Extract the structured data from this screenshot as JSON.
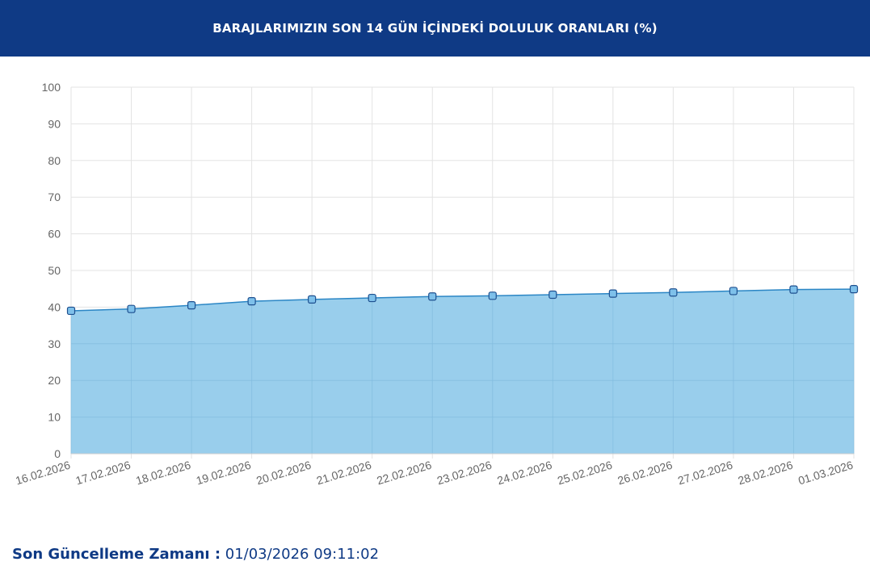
{
  "header": {
    "title": "BARAJLARIMIZIN SON 14 GÜN İÇİNDEKİ DOLULUK ORANLARI (%)"
  },
  "colors": {
    "header_bg": "#0f3a85",
    "area_fill": "#99ceec",
    "line": "#2b86c5",
    "marker_fill": "#7ec0ea",
    "marker_stroke": "#1d4f8f",
    "grid": "#e3e3e3",
    "footer_text": "#0f3a85"
  },
  "chart_data": {
    "type": "area",
    "categories": [
      "16.02.2026",
      "17.02.2026",
      "18.02.2026",
      "19.02.2026",
      "20.02.2026",
      "21.02.2026",
      "22.02.2026",
      "23.02.2026",
      "24.02.2026",
      "25.02.2026",
      "26.02.2026",
      "27.02.2026",
      "28.02.2026",
      "01.03.2026"
    ],
    "series": [
      {
        "values": [
          39.0,
          39.5,
          40.5,
          41.6,
          42.1,
          42.5,
          42.9,
          43.1,
          43.4,
          43.7,
          44.0,
          44.4,
          44.8,
          44.9
        ]
      }
    ],
    "ylim": [
      0,
      100
    ],
    "yticks": [
      0,
      10,
      20,
      30,
      40,
      50,
      60,
      70,
      80,
      90,
      100
    ],
    "grid": true,
    "legend": "none"
  },
  "footer": {
    "label": "Son Güncelleme Zamanı :",
    "value": "01/03/2026 09:11:02"
  }
}
